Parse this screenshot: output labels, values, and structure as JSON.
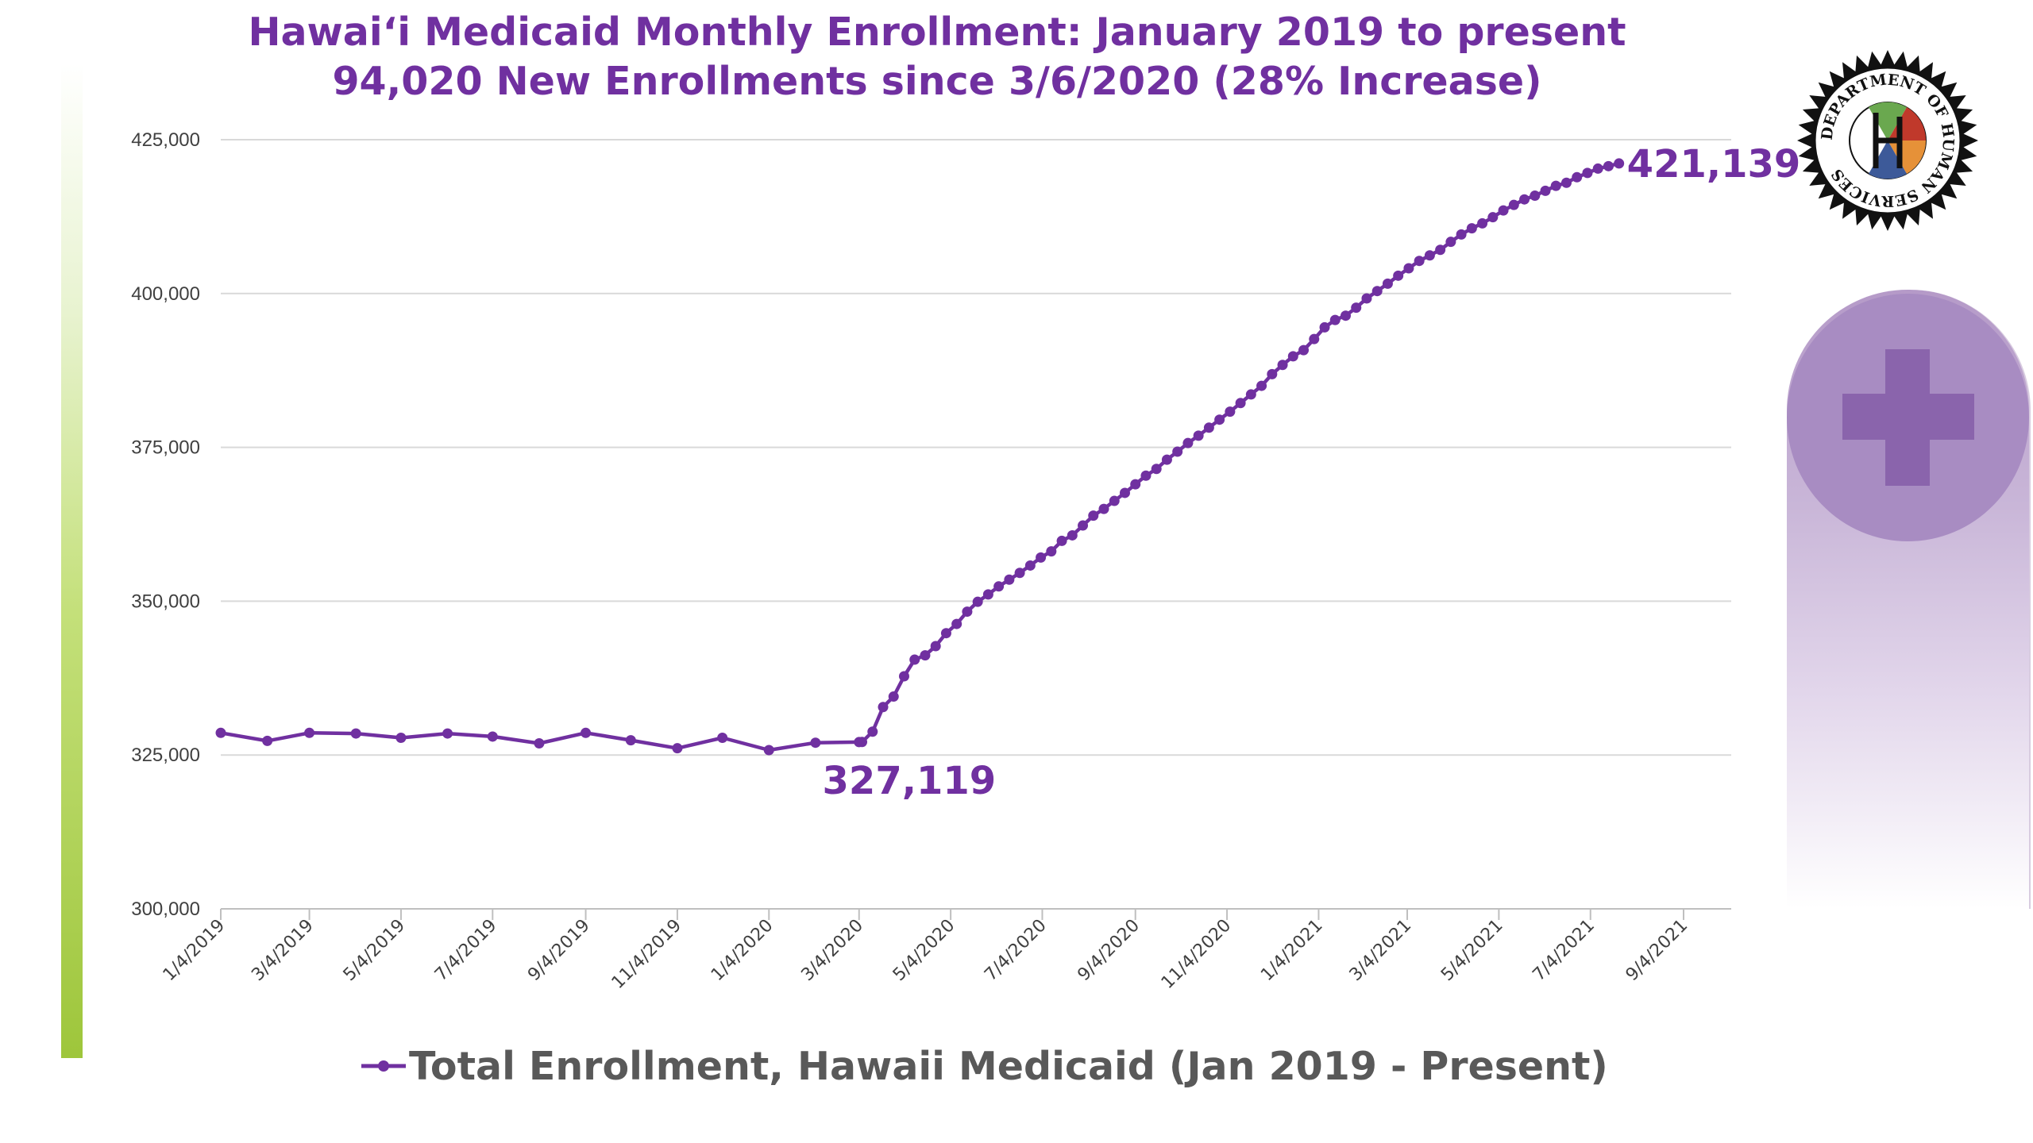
{
  "title_line1": "Hawai‘i Medicaid Monthly Enrollment: January 2019 to present",
  "title_line2": "94,020 New Enrollments since 3/6/2020 (28% Increase)",
  "logo_text": "DEPARTMENT OF HUMAN SERVICES",
  "icons": {
    "logo": "department-of-human-services-seal-icon",
    "panel": "medical-plus-icon"
  },
  "colors": {
    "series": "#7030a0",
    "title": "#7030a0",
    "grid": "#d9d9d9",
    "panel": "#a88cc2",
    "accent_bar": "#9ec63b"
  },
  "chart_data": {
    "type": "line",
    "title": "Hawai‘i Medicaid Monthly Enrollment: January 2019 to present",
    "subtitle": "94,020 New Enrollments since 3/6/2020 (28% Increase)",
    "xlabel": "",
    "ylabel": "",
    "ylim": [
      300000,
      425000
    ],
    "yticks": [
      300000,
      325000,
      350000,
      375000,
      400000,
      425000
    ],
    "ytick_labels": [
      "300,000",
      "325,000",
      "350,000",
      "375,000",
      "400,000",
      "425,000"
    ],
    "x_range": [
      "2019-01-04",
      "2021-10-04"
    ],
    "xticks": [
      "2019-01-04",
      "2019-03-04",
      "2019-05-04",
      "2019-07-04",
      "2019-09-04",
      "2019-11-04",
      "2020-01-04",
      "2020-03-04",
      "2020-05-04",
      "2020-07-04",
      "2020-09-04",
      "2020-11-04",
      "2021-01-04",
      "2021-03-04",
      "2021-05-04",
      "2021-07-04",
      "2021-09-04"
    ],
    "xtick_labels": [
      "1/4/2019",
      "3/4/2019",
      "5/4/2019",
      "7/4/2019",
      "9/4/2019",
      "11/4/2019",
      "1/4/2020",
      "3/4/2020",
      "5/4/2020",
      "7/4/2020",
      "9/4/2020",
      "11/4/2020",
      "1/4/2021",
      "3/4/2021",
      "5/4/2021",
      "7/4/2021",
      "9/4/2021"
    ],
    "grid": true,
    "legend_position": "bottom-center",
    "series": [
      {
        "name": "Total Enrollment, Hawaii Medicaid (Jan 2019 - Present)",
        "color": "#7030a0",
        "x": [
          "2019-01-04",
          "2019-02-04",
          "2019-03-04",
          "2019-04-04",
          "2019-05-04",
          "2019-06-04",
          "2019-07-04",
          "2019-08-04",
          "2019-09-04",
          "2019-10-04",
          "2019-11-04",
          "2019-12-04",
          "2020-01-04",
          "2020-02-04",
          "2020-03-04",
          "2020-03-06",
          "2020-03-13",
          "2020-03-20",
          "2020-03-27",
          "2020-04-03",
          "2020-04-10",
          "2020-04-17",
          "2020-04-24",
          "2020-05-01",
          "2020-05-08",
          "2020-05-15",
          "2020-05-22",
          "2020-05-29",
          "2020-06-05",
          "2020-06-12",
          "2020-06-19",
          "2020-06-26",
          "2020-07-03",
          "2020-07-10",
          "2020-07-17",
          "2020-07-24",
          "2020-07-31",
          "2020-08-07",
          "2020-08-14",
          "2020-08-21",
          "2020-08-28",
          "2020-09-04",
          "2020-09-11",
          "2020-09-18",
          "2020-09-25",
          "2020-10-02",
          "2020-10-09",
          "2020-10-16",
          "2020-10-23",
          "2020-10-30",
          "2020-11-06",
          "2020-11-13",
          "2020-11-20",
          "2020-11-27",
          "2020-12-04",
          "2020-12-11",
          "2020-12-18",
          "2020-12-25",
          "2021-01-01",
          "2021-01-08",
          "2021-01-15",
          "2021-01-22",
          "2021-01-29",
          "2021-02-05",
          "2021-02-12",
          "2021-02-19",
          "2021-02-26",
          "2021-03-05",
          "2021-03-12",
          "2021-03-19",
          "2021-03-26",
          "2021-04-02",
          "2021-04-09",
          "2021-04-16",
          "2021-04-23",
          "2021-04-30",
          "2021-05-07",
          "2021-05-14",
          "2021-05-21",
          "2021-05-28",
          "2021-06-04",
          "2021-06-11",
          "2021-06-18",
          "2021-06-25",
          "2021-07-02",
          "2021-07-09",
          "2021-07-16",
          "2021-07-23"
        ],
        "values": [
          328600,
          327300,
          328600,
          328500,
          327800,
          328500,
          328000,
          326900,
          328600,
          327400,
          326100,
          327800,
          325800,
          327000,
          327100,
          327119,
          328800,
          332800,
          334500,
          337800,
          340500,
          341200,
          342700,
          344800,
          346300,
          348300,
          349900,
          351100,
          352400,
          353500,
          354600,
          355800,
          357100,
          358100,
          359800,
          360700,
          362300,
          363900,
          365000,
          366300,
          367600,
          369000,
          370400,
          371500,
          373000,
          374300,
          375700,
          376900,
          378200,
          379500,
          380800,
          382200,
          383600,
          385000,
          386900,
          388400,
          389800,
          390800,
          392600,
          394500,
          395700,
          396400,
          397700,
          399200,
          400400,
          401600,
          402900,
          404100,
          405300,
          406200,
          407100,
          408400,
          409600,
          410600,
          411400,
          412400,
          413500,
          414400,
          415300,
          415900,
          416700,
          417500,
          418000,
          418900,
          419600,
          420300,
          420700,
          421139
        ]
      }
    ],
    "annotations": [
      {
        "x": "2020-03-06",
        "y": 327119,
        "text": "327,119"
      },
      {
        "x": "2021-07-23",
        "y": 421139,
        "text": "421,139"
      }
    ]
  }
}
